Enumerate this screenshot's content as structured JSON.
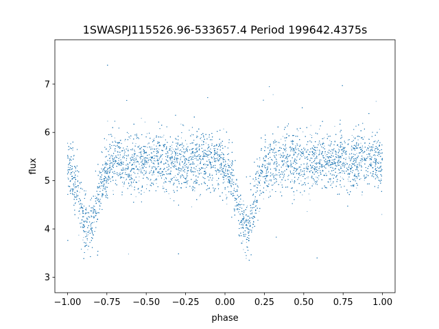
{
  "chart_data": {
    "type": "scatter",
    "title": "1SWASPJ115526.96-533657.4 Period 199642.4375s",
    "xlabel": "phase",
    "ylabel": "flux",
    "xlim": [
      -1.08,
      1.08
    ],
    "ylim": [
      2.68,
      7.92
    ],
    "xticks": [
      -1.0,
      -0.75,
      -0.5,
      -0.25,
      0.0,
      0.25,
      0.5,
      0.75,
      1.0
    ],
    "xtick_labels": [
      "−1.00",
      "−0.75",
      "−0.50",
      "−0.25",
      "0.00",
      "0.25",
      "0.50",
      "0.75",
      "1.00"
    ],
    "yticks": [
      3,
      4,
      5,
      6,
      7
    ],
    "ytick_labels": [
      "3",
      "4",
      "5",
      "6",
      "7"
    ],
    "grid": false,
    "point_color": "#1f77b4",
    "series": [
      {
        "x_range": [
          -1.0,
          1.0
        ],
        "baseline_flux": 5.4,
        "scatter": 0.3,
        "eclipses": [
          {
            "phase": -0.87,
            "min_flux": 4.0
          },
          {
            "phase": 0.13,
            "min_flux": 4.0
          }
        ],
        "sampled_points": [
          [
            -1.0,
            5.35
          ],
          [
            -0.95,
            5.1
          ],
          [
            -0.9,
            4.6
          ],
          [
            -0.87,
            4.0
          ],
          [
            -0.84,
            4.5
          ],
          [
            -0.8,
            5.1
          ],
          [
            -0.75,
            5.4
          ],
          [
            -0.6,
            5.45
          ],
          [
            -0.5,
            5.4
          ],
          [
            -0.4,
            5.35
          ],
          [
            -0.25,
            5.45
          ],
          [
            -0.1,
            5.4
          ],
          [
            0.0,
            5.3
          ],
          [
            0.05,
            5.1
          ],
          [
            0.1,
            4.6
          ],
          [
            0.13,
            4.0
          ],
          [
            0.16,
            4.5
          ],
          [
            0.2,
            5.1
          ],
          [
            0.25,
            5.4
          ],
          [
            0.4,
            5.45
          ],
          [
            0.5,
            5.4
          ],
          [
            0.6,
            5.35
          ],
          [
            0.75,
            5.45
          ],
          [
            0.9,
            5.4
          ],
          [
            1.0,
            5.35
          ]
        ]
      }
    ]
  }
}
